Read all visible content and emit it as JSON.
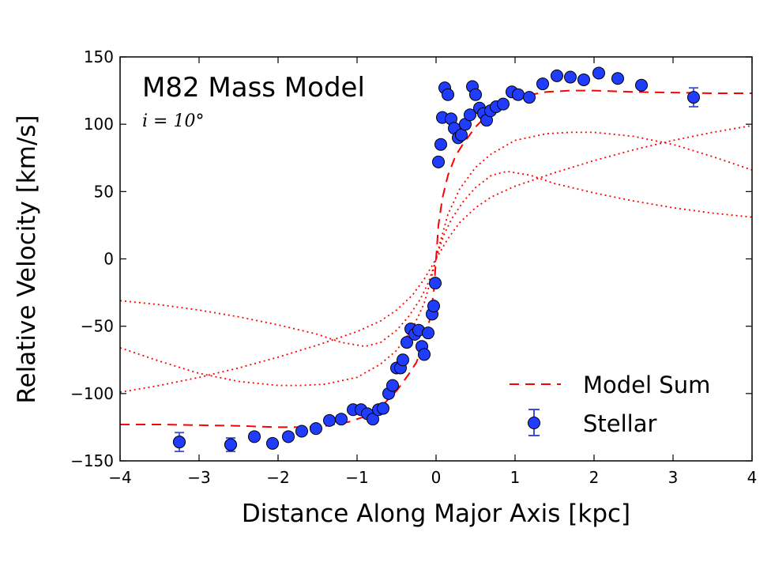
{
  "chart_data": {
    "type": "scatter",
    "title": "M82 Mass Model",
    "subtitle": "i = 10°",
    "xlabel": "Distance Along Major Axis [kpc]",
    "ylabel": "Relative Velocity [km/s]",
    "xlim": [
      -4,
      4
    ],
    "ylim": [
      -150,
      150
    ],
    "xticks": [
      -4,
      -3,
      -2,
      -1,
      0,
      1,
      2,
      3,
      4
    ],
    "yticks": [
      -150,
      -100,
      -50,
      0,
      50,
      100,
      150
    ],
    "xtick_labels": [
      "−4",
      "−3",
      "−2",
      "−1",
      "0",
      "1",
      "2",
      "3",
      "4"
    ],
    "ytick_labels": [
      "−150",
      "−100",
      "−50",
      "0",
      "50",
      "100",
      "150"
    ],
    "legend": {
      "position": "lower-right",
      "entries": [
        {
          "label": "Model Sum",
          "style": "dashed-line",
          "color": "#ff0000"
        },
        {
          "label": "Stellar",
          "style": "marker-errorbar",
          "color": "#1f3cff"
        }
      ]
    },
    "colors": {
      "data": "#1f3cff",
      "model": "#ff0000",
      "errorbar": "#3a4fd8"
    },
    "series": [
      {
        "name": "Stellar",
        "style": "markers",
        "points": [
          [
            -3.25,
            -136
          ],
          [
            -2.6,
            -138
          ],
          [
            -2.3,
            -132
          ],
          [
            -2.07,
            -137
          ],
          [
            -1.87,
            -132
          ],
          [
            -1.7,
            -128
          ],
          [
            -1.52,
            -126
          ],
          [
            -1.35,
            -120
          ],
          [
            -1.2,
            -119
          ],
          [
            -1.05,
            -112
          ],
          [
            -0.95,
            -112
          ],
          [
            -0.87,
            -115
          ],
          [
            -0.8,
            -119
          ],
          [
            -0.73,
            -112
          ],
          [
            -0.67,
            -111
          ],
          [
            -0.6,
            -100
          ],
          [
            -0.55,
            -94
          ],
          [
            -0.5,
            -81
          ],
          [
            -0.45,
            -81
          ],
          [
            -0.42,
            -75
          ],
          [
            -0.37,
            -62
          ],
          [
            -0.32,
            -52
          ],
          [
            -0.27,
            -56
          ],
          [
            -0.22,
            -53
          ],
          [
            -0.18,
            -65
          ],
          [
            -0.15,
            -71
          ],
          [
            -0.1,
            -55
          ],
          [
            -0.05,
            -41
          ],
          [
            -0.03,
            -35
          ],
          [
            -0.01,
            -18
          ],
          [
            0.03,
            72
          ],
          [
            0.06,
            85
          ],
          [
            0.08,
            105
          ],
          [
            0.11,
            127
          ],
          [
            0.15,
            122
          ],
          [
            0.19,
            104
          ],
          [
            0.23,
            97
          ],
          [
            0.28,
            90
          ],
          [
            0.32,
            92
          ],
          [
            0.37,
            100
          ],
          [
            0.43,
            107
          ],
          [
            0.46,
            128
          ],
          [
            0.5,
            122
          ],
          [
            0.55,
            112
          ],
          [
            0.6,
            108
          ],
          [
            0.64,
            103
          ],
          [
            0.69,
            110
          ],
          [
            0.76,
            113
          ],
          [
            0.85,
            115
          ],
          [
            0.96,
            124
          ],
          [
            1.04,
            122
          ],
          [
            1.18,
            120
          ],
          [
            1.35,
            130
          ],
          [
            1.53,
            136
          ],
          [
            1.7,
            135
          ],
          [
            1.87,
            133
          ],
          [
            2.06,
            138
          ],
          [
            2.3,
            134
          ],
          [
            2.6,
            129
          ]
        ],
        "error_points": [
          {
            "x": -3.25,
            "y": -136,
            "err": 7
          },
          {
            "x": -2.6,
            "y": -138,
            "err": 5
          },
          {
            "x": 3.26,
            "y": 120,
            "err": 7
          }
        ]
      },
      {
        "name": "Model Sum",
        "style": "dashed",
        "points": [
          [
            -4,
            -123
          ],
          [
            -3.5,
            -123
          ],
          [
            -3,
            -123.5
          ],
          [
            -2.5,
            -124
          ],
          [
            -2,
            -125
          ],
          [
            -1.7,
            -125
          ],
          [
            -1.4,
            -124
          ],
          [
            -1.1,
            -121
          ],
          [
            -0.9,
            -117
          ],
          [
            -0.7,
            -110
          ],
          [
            -0.5,
            -98
          ],
          [
            -0.35,
            -86
          ],
          [
            -0.25,
            -77
          ],
          [
            -0.15,
            -62
          ],
          [
            -0.08,
            -45
          ],
          [
            -0.03,
            -25
          ],
          [
            0,
            0
          ],
          [
            0.03,
            25
          ],
          [
            0.08,
            45
          ],
          [
            0.15,
            62
          ],
          [
            0.25,
            77
          ],
          [
            0.35,
            86
          ],
          [
            0.5,
            98
          ],
          [
            0.7,
            110
          ],
          [
            0.9,
            117
          ],
          [
            1.1,
            121
          ],
          [
            1.4,
            124
          ],
          [
            1.7,
            125
          ],
          [
            2,
            125
          ],
          [
            2.5,
            124
          ],
          [
            3,
            123.5
          ],
          [
            3.5,
            123
          ],
          [
            4,
            123
          ]
        ]
      },
      {
        "style": "dotted",
        "points": [
          [
            -4,
            -31
          ],
          [
            -3.5,
            -34
          ],
          [
            -3,
            -38
          ],
          [
            -2.5,
            -43
          ],
          [
            -2,
            -49
          ],
          [
            -1.5,
            -56
          ],
          [
            -1.2,
            -62
          ],
          [
            -0.9,
            -65
          ],
          [
            -0.7,
            -62
          ],
          [
            -0.5,
            -53
          ],
          [
            -0.35,
            -43
          ],
          [
            -0.2,
            -30
          ],
          [
            -0.1,
            -18
          ],
          [
            -0.03,
            -6
          ],
          [
            0,
            0
          ],
          [
            0.03,
            6
          ],
          [
            0.1,
            18
          ],
          [
            0.2,
            30
          ],
          [
            0.35,
            43
          ],
          [
            0.5,
            53
          ],
          [
            0.7,
            62
          ],
          [
            0.9,
            65
          ],
          [
            1.2,
            62
          ],
          [
            1.5,
            56
          ],
          [
            2,
            49
          ],
          [
            2.5,
            43
          ],
          [
            3,
            38
          ],
          [
            3.5,
            34
          ],
          [
            4,
            31
          ]
        ]
      },
      {
        "style": "dotted",
        "points": [
          [
            -4,
            -66
          ],
          [
            -3.5,
            -76
          ],
          [
            -3,
            -85
          ],
          [
            -2.5,
            -91
          ],
          [
            -2,
            -94
          ],
          [
            -1.7,
            -94
          ],
          [
            -1.4,
            -93
          ],
          [
            -1,
            -88
          ],
          [
            -0.7,
            -78
          ],
          [
            -0.5,
            -68
          ],
          [
            -0.3,
            -52
          ],
          [
            -0.15,
            -33
          ],
          [
            -0.05,
            -12
          ],
          [
            0,
            0
          ],
          [
            0.05,
            12
          ],
          [
            0.15,
            33
          ],
          [
            0.3,
            52
          ],
          [
            0.5,
            68
          ],
          [
            0.7,
            78
          ],
          [
            1,
            88
          ],
          [
            1.4,
            93
          ],
          [
            1.7,
            94
          ],
          [
            2,
            94
          ],
          [
            2.5,
            91
          ],
          [
            3,
            85
          ],
          [
            3.5,
            76
          ],
          [
            4,
            66
          ]
        ]
      },
      {
        "style": "dotted",
        "points": [
          [
            -4,
            -99
          ],
          [
            -3.5,
            -94
          ],
          [
            -3,
            -88
          ],
          [
            -2.5,
            -81
          ],
          [
            -2,
            -73
          ],
          [
            -1.5,
            -64
          ],
          [
            -1,
            -54
          ],
          [
            -0.7,
            -46
          ],
          [
            -0.5,
            -38
          ],
          [
            -0.3,
            -27
          ],
          [
            -0.15,
            -15
          ],
          [
            -0.05,
            -5
          ],
          [
            0,
            0
          ],
          [
            0.05,
            5
          ],
          [
            0.15,
            15
          ],
          [
            0.3,
            27
          ],
          [
            0.5,
            38
          ],
          [
            0.7,
            46
          ],
          [
            1,
            54
          ],
          [
            1.5,
            64
          ],
          [
            2,
            73
          ],
          [
            2.5,
            81
          ],
          [
            3,
            88
          ],
          [
            3.5,
            94
          ],
          [
            4,
            99
          ]
        ]
      }
    ]
  }
}
